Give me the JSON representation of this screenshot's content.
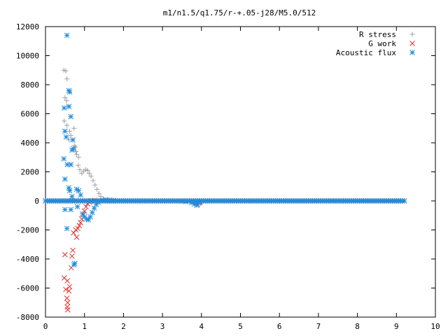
{
  "chart_data": {
    "type": "scatter",
    "title": "m1/n1.5/q1.75/r-+.05-j28/M5.0/512",
    "xlabel": "",
    "ylabel": "",
    "xlim": [
      0,
      10
    ],
    "ylim": [
      -8000,
      12000
    ],
    "x_ticks": [
      "0",
      "1",
      "2",
      "3",
      "4",
      "5",
      "6",
      "7",
      "8",
      "9",
      "10"
    ],
    "y_ticks": [
      "-8000",
      "-6000",
      "-4000",
      "-2000",
      "0",
      "2000",
      "4000",
      "6000",
      "8000",
      "10000",
      "12000"
    ],
    "grid": false,
    "legend_position": "top-right",
    "series": [
      {
        "name": "R stress",
        "marker": "plus",
        "color": "#a0a0a0",
        "points": [
          [
            0.47,
            9000
          ],
          [
            0.52,
            8950
          ],
          [
            0.55,
            8400
          ],
          [
            0.5,
            7100
          ],
          [
            0.54,
            6900
          ],
          [
            0.6,
            6500
          ],
          [
            0.48,
            5500
          ],
          [
            0.55,
            5200
          ],
          [
            0.62,
            4800
          ],
          [
            0.65,
            4500
          ],
          [
            0.6,
            4200
          ],
          [
            0.73,
            5000
          ],
          [
            0.7,
            4200
          ],
          [
            0.74,
            3800
          ],
          [
            0.77,
            3700
          ],
          [
            0.78,
            3400
          ],
          [
            0.8,
            3200
          ],
          [
            0.85,
            3000
          ],
          [
            0.84,
            2450
          ],
          [
            0.88,
            2150
          ],
          [
            0.93,
            1900
          ],
          [
            0.98,
            2050
          ],
          [
            1.03,
            2150
          ],
          [
            1.08,
            2100
          ],
          [
            1.12,
            1900
          ],
          [
            1.17,
            1700
          ],
          [
            1.22,
            1400
          ],
          [
            1.27,
            1100
          ],
          [
            1.32,
            800
          ],
          [
            1.37,
            520
          ],
          [
            1.42,
            300
          ],
          [
            1.48,
            150
          ],
          [
            1.55,
            60
          ],
          [
            1.65,
            30
          ],
          [
            1.75,
            20
          ],
          [
            1.9,
            10
          ],
          [
            2.1,
            5
          ]
        ]
      },
      {
        "name": "G work",
        "marker": "cross",
        "color": "#e03030",
        "points": [
          [
            0.5,
            -3700
          ],
          [
            0.48,
            -5300
          ],
          [
            0.56,
            -5500
          ],
          [
            0.52,
            -6100
          ],
          [
            0.6,
            -6200
          ],
          [
            0.62,
            -5900
          ],
          [
            0.55,
            -6700
          ],
          [
            0.57,
            -7000
          ],
          [
            0.56,
            -7300
          ],
          [
            0.57,
            -7500
          ],
          [
            0.66,
            -4600
          ],
          [
            0.68,
            -3800
          ],
          [
            0.7,
            -3400
          ],
          [
            0.72,
            -2200
          ],
          [
            0.78,
            -2000
          ],
          [
            0.8,
            -2500
          ],
          [
            0.83,
            -1900
          ],
          [
            0.87,
            -1700
          ],
          [
            0.9,
            -1500
          ],
          [
            0.93,
            -1250
          ],
          [
            0.97,
            -950
          ],
          [
            1.0,
            -700
          ],
          [
            1.04,
            -400
          ],
          [
            1.08,
            -200
          ],
          [
            1.13,
            -80
          ],
          [
            1.18,
            0
          ],
          [
            1.25,
            40
          ],
          [
            1.35,
            20
          ],
          [
            1.5,
            0
          ],
          [
            1.7,
            -20
          ],
          [
            3.5,
            -20
          ],
          [
            3.85,
            -100
          ],
          [
            3.9,
            -250
          ],
          [
            3.95,
            -120
          ]
        ]
      },
      {
        "name": "Acoustic flux",
        "marker": "asterisk",
        "color": "#1e8cdc",
        "points": [
          [
            0.55,
            11400
          ],
          [
            0.6,
            7600
          ],
          [
            0.62,
            7500
          ],
          [
            0.6,
            6500
          ],
          [
            0.48,
            6400
          ],
          [
            0.65,
            5800
          ],
          [
            0.5,
            4800
          ],
          [
            0.53,
            4400
          ],
          [
            0.7,
            4200
          ],
          [
            0.68,
            3500
          ],
          [
            0.72,
            3600
          ],
          [
            0.47,
            2900
          ],
          [
            0.56,
            2500
          ],
          [
            0.65,
            2500
          ],
          [
            0.5,
            1500
          ],
          [
            0.6,
            900
          ],
          [
            0.62,
            700
          ],
          [
            0.8,
            800
          ],
          [
            0.85,
            700
          ],
          [
            0.9,
            400
          ],
          [
            0.68,
            300
          ],
          [
            0.5,
            -600
          ],
          [
            0.55,
            -1900
          ],
          [
            0.65,
            -600
          ],
          [
            0.73,
            -4400
          ],
          [
            0.75,
            -4300
          ],
          [
            0.82,
            -400
          ],
          [
            0.95,
            -900
          ],
          [
            1.0,
            -1100
          ],
          [
            1.05,
            -1250
          ],
          [
            1.1,
            -1300
          ],
          [
            1.15,
            -1100
          ],
          [
            1.2,
            -800
          ],
          [
            1.25,
            -500
          ],
          [
            1.3,
            -250
          ],
          [
            1.35,
            -100
          ],
          [
            1.45,
            20
          ],
          [
            1.55,
            80
          ],
          [
            1.65,
            60
          ],
          [
            1.75,
            40
          ],
          [
            3.6,
            -50
          ],
          [
            3.75,
            -120
          ],
          [
            3.82,
            -220
          ],
          [
            3.88,
            -300
          ],
          [
            3.92,
            -150
          ],
          [
            3.97,
            -80
          ]
        ]
      }
    ],
    "baseline": {
      "x_from": 0,
      "x_to": 9.2,
      "y": 0
    }
  }
}
